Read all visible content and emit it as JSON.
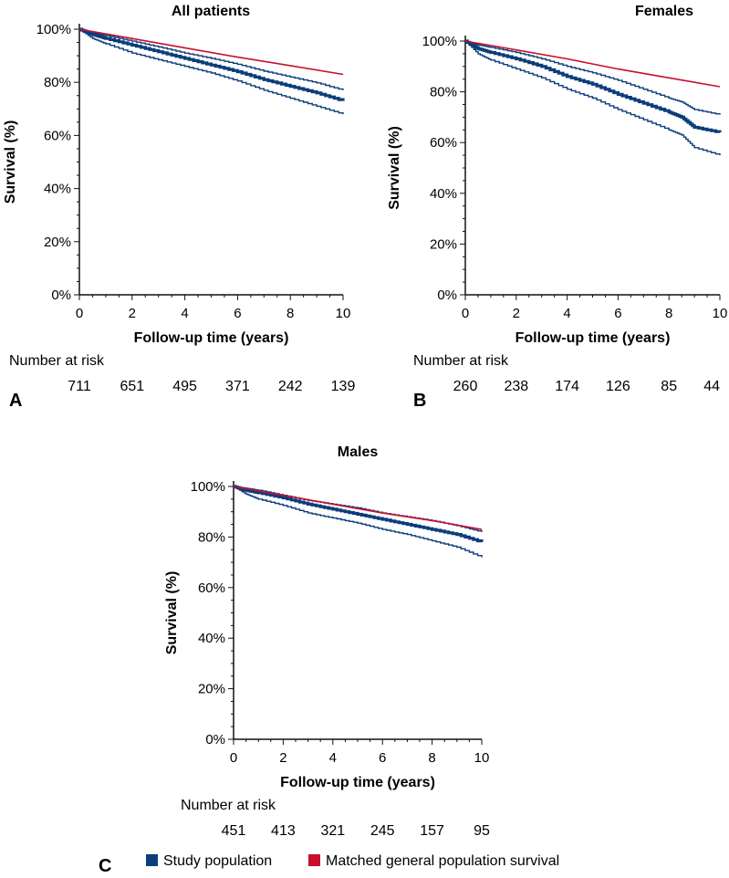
{
  "colors": {
    "study": "#0b3d7a",
    "matched": "#c8102e",
    "axis": "#111111"
  },
  "legend": {
    "study_label": "Study population",
    "matched_label": "Matched general population survival"
  },
  "chart_data": [
    {
      "id": "A",
      "type": "line",
      "title": "All patients",
      "panel_letter": "A",
      "xlabel": "Follow-up time (years)",
      "ylabel": "Survival (%)",
      "xlim": [
        0,
        10
      ],
      "ylim": [
        0,
        100
      ],
      "xticks": [
        0,
        2,
        4,
        6,
        8,
        10
      ],
      "yticks": [
        0,
        20,
        40,
        60,
        80,
        100
      ],
      "ytick_labels": [
        "0%",
        "20%",
        "40%",
        "60%",
        "80%",
        "100%"
      ],
      "risk_label": "Number at risk",
      "risk_times": [
        0,
        2,
        4,
        6,
        8,
        10
      ],
      "number_at_risk": [
        711,
        651,
        495,
        371,
        242,
        139
      ],
      "series": [
        {
          "name": "Study population",
          "x": [
            0,
            0.5,
            1,
            2,
            3,
            4,
            5,
            6,
            7,
            8,
            9,
            10
          ],
          "y": [
            100,
            98,
            96.5,
            94,
            91.5,
            89,
            86.5,
            84,
            81,
            78.5,
            76,
            73
          ]
        },
        {
          "name": "Upper 95% CI",
          "x": [
            0,
            0.5,
            1,
            2,
            3,
            4,
            5,
            6,
            7,
            8,
            9,
            10
          ],
          "y": [
            100,
            98.8,
            97.6,
            95.5,
            93.3,
            91,
            89,
            86.8,
            84.2,
            82,
            79.8,
            77
          ]
        },
        {
          "name": "Lower 95% CI",
          "x": [
            0,
            0.5,
            1,
            2,
            3,
            4,
            5,
            6,
            7,
            8,
            9,
            10
          ],
          "y": [
            100,
            96.5,
            94.5,
            91,
            88.5,
            86,
            83.5,
            80.5,
            77,
            74,
            71,
            68
          ]
        },
        {
          "name": "Matched general population survival",
          "x": [
            0,
            2,
            4,
            6,
            8,
            10
          ],
          "y": [
            100,
            96.5,
            93,
            89.5,
            86.3,
            83
          ]
        }
      ]
    },
    {
      "id": "B",
      "type": "line",
      "title": "Females",
      "panel_letter": "B",
      "xlabel": "Follow-up time (years)",
      "ylabel": "Survival (%)",
      "xlim": [
        0,
        10
      ],
      "ylim": [
        0,
        100
      ],
      "xticks": [
        0,
        2,
        4,
        6,
        8,
        10
      ],
      "yticks": [
        0,
        20,
        40,
        60,
        80,
        100
      ],
      "ytick_labels": [
        "0%",
        "20%",
        "40%",
        "60%",
        "80%",
        "100%"
      ],
      "risk_label": "Number at risk",
      "risk_times": [
        0,
        2,
        4,
        6,
        8,
        10
      ],
      "number_at_risk": [
        260,
        238,
        174,
        126,
        85,
        44
      ],
      "series": [
        {
          "name": "Study population",
          "x": [
            0,
            0.5,
            1,
            2,
            3,
            4,
            5,
            6,
            7,
            8,
            8.5,
            9,
            10
          ],
          "y": [
            100,
            97,
            95.5,
            93,
            90,
            86,
            83,
            79,
            75.5,
            72,
            70,
            66,
            64
          ]
        },
        {
          "name": "Upper 95% CI",
          "x": [
            0,
            0.5,
            1,
            2,
            3,
            4,
            5,
            6,
            7,
            8,
            8.5,
            9,
            10
          ],
          "y": [
            100,
            98.5,
            97.5,
            95.5,
            93,
            90,
            87.5,
            84.5,
            81,
            77.5,
            76,
            73,
            71
          ]
        },
        {
          "name": "Lower 95% CI",
          "x": [
            0,
            0.5,
            1,
            2,
            3,
            4,
            5,
            6,
            7,
            8,
            8.5,
            9,
            10
          ],
          "y": [
            100,
            95,
            92.5,
            89,
            85.5,
            81,
            77.5,
            73,
            69,
            65,
            63,
            58,
            55
          ]
        },
        {
          "name": "Matched general population survival",
          "x": [
            0,
            2,
            4,
            6,
            8,
            10
          ],
          "y": [
            100,
            96.5,
            93,
            89,
            85.5,
            82
          ]
        }
      ]
    },
    {
      "id": "C",
      "type": "line",
      "title": "Males",
      "panel_letter": "C",
      "xlabel": "Follow-up time (years)",
      "ylabel": "Survival (%)",
      "xlim": [
        0,
        10
      ],
      "ylim": [
        0,
        100
      ],
      "xticks": [
        0,
        2,
        4,
        6,
        8,
        10
      ],
      "yticks": [
        0,
        20,
        40,
        60,
        80,
        100
      ],
      "ytick_labels": [
        "0%",
        "20%",
        "40%",
        "60%",
        "80%",
        "100%"
      ],
      "risk_label": "Number at risk",
      "risk_times": [
        0,
        2,
        4,
        6,
        8,
        10
      ],
      "number_at_risk": [
        451,
        413,
        321,
        245,
        157,
        95
      ],
      "series": [
        {
          "name": "Study population",
          "x": [
            0,
            0.5,
            1,
            2,
            3,
            4,
            5,
            6,
            7,
            8,
            9,
            10
          ],
          "y": [
            100,
            98.5,
            97.5,
            95.5,
            93,
            91,
            89,
            87,
            85,
            83,
            81,
            78
          ]
        },
        {
          "name": "Upper 95% CI",
          "x": [
            0,
            0.5,
            1,
            2,
            3,
            4,
            5,
            6,
            7,
            8,
            9,
            10
          ],
          "y": [
            100,
            99.3,
            98.5,
            96.5,
            94.5,
            93,
            91.5,
            89.5,
            88,
            86.5,
            84.5,
            82
          ]
        },
        {
          "name": "Lower 95% CI",
          "x": [
            0,
            0.5,
            1,
            2,
            3,
            4,
            5,
            6,
            7,
            8,
            9,
            10
          ],
          "y": [
            100,
            97,
            95,
            92.5,
            89.5,
            87.5,
            85.5,
            83,
            81,
            78.5,
            76,
            72
          ]
        },
        {
          "name": "Matched general population survival",
          "x": [
            0,
            2,
            4,
            6,
            8,
            10
          ],
          "y": [
            100,
            96.5,
            93,
            89.5,
            86.5,
            83
          ]
        }
      ]
    }
  ]
}
